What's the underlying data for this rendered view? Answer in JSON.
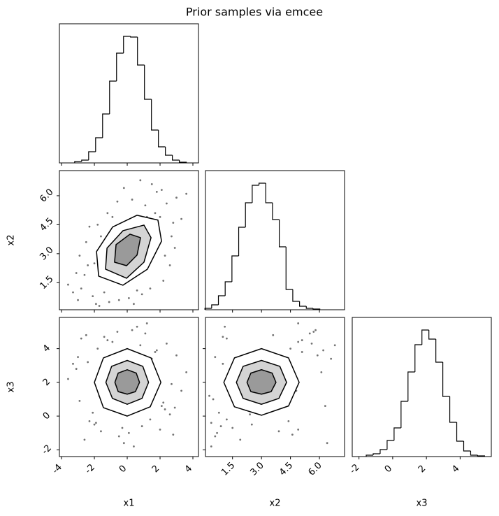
{
  "chart_data": {
    "type": "corner",
    "title": "Prior samples via emcee",
    "line_color": "#000000",
    "point_color": "#000000",
    "contour_fills": [
      "#ffffff",
      "#d4d4d4",
      "#9a9a9a"
    ],
    "hist_ylim": [
      0,
      199
    ],
    "variables": [
      {
        "label": "x1",
        "lim": [
          -4.13,
          4.34
        ],
        "ticks": [
          -4,
          -2,
          0,
          2,
          4
        ],
        "bins": [
          -3.2,
          -2.775,
          -2.35,
          -1.925,
          -1.5,
          -1.075,
          -0.65,
          -0.225,
          0.2,
          0.625,
          1.05,
          1.475,
          1.9,
          2.325,
          2.75,
          3.175,
          3.6
        ],
        "counts": [
          2,
          4,
          16,
          36,
          70,
          117,
          157,
          181,
          180,
          140,
          91,
          47,
          23,
          11,
          4,
          1
        ],
        "samples": [
          -2.8,
          -2.1,
          -1.6,
          -3.1,
          2.4,
          2.9,
          1.8,
          -1.9,
          0.3,
          -0.5,
          2.2,
          -2.5,
          1.5,
          3.3,
          -3.6,
          0.9,
          -1.2,
          2.6,
          -0.2,
          1.1,
          -2.3,
          3.0,
          -1.7,
          0.6,
          -2.9,
          2.0,
          -0.9,
          1.4,
          -3.3,
          2.7,
          0.1,
          -1.4,
          2.3,
          -2.6,
          1.7,
          -0.6,
          3.6,
          -2.0,
          0.8,
          -1.1,
          2.8,
          -3.0,
          1.2,
          -0.3,
          2.1,
          -1.8,
          0.4,
          -2.4
        ]
      },
      {
        "label": "x2",
        "lim": [
          0.1,
          7.3
        ],
        "ticks": [
          1.5,
          {
            "value": 3,
            "label": "3.0"
          },
          4.5,
          {
            "value": 6,
            "label": "6.0"
          }
        ],
        "bins": [
          0.07,
          0.42,
          0.77,
          1.12,
          1.47,
          1.82,
          2.17,
          2.52,
          2.87,
          3.22,
          3.57,
          3.92,
          4.27,
          4.62,
          4.97,
          5.32,
          5.67,
          6.02
        ],
        "counts": [
          2,
          7,
          20,
          40,
          77,
          118,
          153,
          178,
          181,
          153,
          129,
          90,
          29,
          12,
          5,
          2,
          1
        ],
        "samples": [
          1.2,
          0.8,
          3.9,
          2.0,
          5.6,
          3.3,
          6.2,
          0.4,
          5.8,
          0.6,
          1.6,
          3.6,
          6.6,
          4.8,
          1.4,
          0.9,
          5.1,
          2.4,
          6.4,
          5.5,
          4.4,
          5.9,
          0.3,
          1.1,
          2.9,
          4.9,
          4.9,
          1.2,
          1.0,
          3.9,
          0.7,
          1.0,
          2.9,
          1.9,
          5.1,
          5.7,
          6.1,
          2.5,
          6.8,
          0.5,
          4.6,
          0.6,
          4.9,
          1.5,
          6.3,
          4.5,
          0.4,
          2.4
        ]
      },
      {
        "label": "x3",
        "lim": [
          -2.4,
          5.85
        ],
        "ticks": [
          -2,
          0,
          2,
          4
        ],
        "bins": [
          -1.57,
          -1.157,
          -0.744,
          -0.331,
          0.082,
          0.495,
          0.908,
          1.321,
          1.734,
          2.147,
          2.56,
          2.973,
          3.386,
          3.799,
          4.212,
          4.625,
          5.038,
          5.451
        ],
        "counts": [
          2,
          4,
          10,
          23,
          41,
          79,
          121,
          160,
          181,
          168,
          135,
          86,
          49,
          22,
          8,
          2,
          1
        ],
        "samples": [
          4.6,
          0.2,
          -0.9,
          2.8,
          4.3,
          0.5,
          3.9,
          -0.4,
          5.1,
          -1.2,
          0.8,
          4.8,
          3.4,
          1.5,
          2.2,
          -0.6,
          4.5,
          0.1,
          -1.6,
          4.9,
          -0.3,
          3.6,
          1.2,
          5.3,
          0.9,
          -0.8,
          4.4,
          -0.2,
          3.1,
          1.9,
          -1.0,
          4.7,
          0.4,
          -1.4,
          3.8,
          5.0,
          2.6,
          -0.5,
          4.2,
          1.0,
          -1.1,
          3.5,
          5.5,
          -0.7,
          0.6,
          4.0,
          -1.8,
          3.2
        ]
      }
    ],
    "contours": [
      [
        {
          "x": [
            -1.74,
            -1.87,
            -0.89,
            0.6,
            1.87,
            2.09,
            1.23,
            -0.26
          ],
          "y": [
            1.84,
            3.11,
            4.38,
            4.99,
            4.74,
            3.65,
            2.2,
            1.37
          ]
        },
        {
          "x": [
            -1.32,
            -1.23,
            -0.26,
            1.02,
            1.45,
            1.02,
            -0.04
          ],
          "y": [
            2.2,
            3.29,
            4.19,
            4.48,
            3.83,
            2.56,
            1.73
          ]
        },
        {
          "x": [
            -0.77,
            -0.68,
            0.17,
            0.81,
            0.6,
            -0.04
          ],
          "y": [
            2.56,
            3.47,
            4.01,
            3.83,
            2.93,
            2.38
          ]
        }
      ],
      [
        {
          "x": [
            0,
            1.45,
            2.05,
            1.4,
            0,
            -1.45,
            -2.0,
            -1.45
          ],
          "y": [
            4.0,
            3.45,
            2.0,
            0.55,
            0,
            0.5,
            2.0,
            3.45
          ]
        },
        {
          "x": [
            0,
            0.95,
            1.3,
            0.9,
            0,
            -0.9,
            -1.3,
            -0.95
          ],
          "y": [
            3.3,
            2.95,
            2.0,
            1.05,
            0.7,
            1.05,
            2.0,
            2.95
          ]
        },
        {
          "x": [
            0,
            0.55,
            0.75,
            0.5,
            0,
            -0.55,
            -0.75,
            -0.55
          ],
          "y": [
            2.75,
            2.55,
            2.0,
            1.45,
            1.3,
            1.45,
            2.0,
            2.55
          ]
        }
      ],
      [
        {
          "x": [
            3,
            4.4,
            4.95,
            4.4,
            3,
            1.6,
            1.05,
            1.6
          ],
          "y": [
            4.0,
            3.45,
            2.0,
            0.6,
            0.05,
            0.55,
            2.0,
            3.45
          ]
        },
        {
          "x": [
            3,
            3.95,
            4.3,
            3.9,
            3,
            2.05,
            1.7,
            2.05
          ],
          "y": [
            3.3,
            2.95,
            2.0,
            1.05,
            0.7,
            1.05,
            2.0,
            2.95
          ]
        },
        {
          "x": [
            3,
            3.55,
            3.75,
            3.5,
            3,
            2.45,
            2.25,
            2.45
          ],
          "y": [
            2.75,
            2.55,
            2.0,
            1.45,
            1.3,
            1.45,
            2.0,
            2.55
          ]
        }
      ]
    ]
  }
}
